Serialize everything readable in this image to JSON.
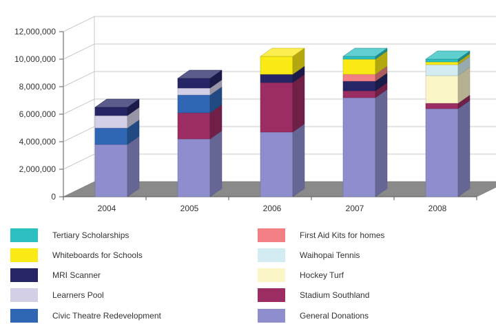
{
  "chart_data": {
    "type": "bar",
    "stacked": true,
    "three_d": true,
    "title": "",
    "xlabel": "",
    "ylabel": "",
    "categories": [
      "2004",
      "2005",
      "2006",
      "2007",
      "2008"
    ],
    "ylim": [
      0,
      13000000
    ],
    "yticks": [
      0,
      2000000,
      4000000,
      6000000,
      8000000,
      10000000,
      12000000
    ],
    "ytick_labels": [
      "0",
      "2,000,000",
      "4,000,000",
      "6,000,000",
      "8,000,000",
      "10,000,000",
      "12,000,000"
    ],
    "grid": true,
    "legend_position": "bottom",
    "series": [
      {
        "name": "General Donations",
        "color": "#8e8ecf",
        "values": [
          3800000,
          4200000,
          4700000,
          7200000,
          6400000
        ]
      },
      {
        "name": "Stadium Southland",
        "color": "#9b2d62",
        "values": [
          0,
          1900000,
          3600000,
          500000,
          400000
        ]
      },
      {
        "name": "Civic Theatre Redevelopment",
        "color": "#2f67b4",
        "values": [
          1200000,
          1300000,
          0,
          0,
          0
        ]
      },
      {
        "name": "Hockey Turf",
        "color": "#fbf6c8",
        "values": [
          0,
          0,
          0,
          0,
          2000000
        ]
      },
      {
        "name": "Learners Pool",
        "color": "#d3cfe6",
        "values": [
          900000,
          500000,
          0,
          0,
          0
        ]
      },
      {
        "name": "Waihopai Tennis",
        "color": "#d2ecf2",
        "values": [
          0,
          0,
          0,
          0,
          800000
        ]
      },
      {
        "name": "MRI Scanner",
        "color": "#262566",
        "values": [
          600000,
          700000,
          600000,
          700000,
          0
        ]
      },
      {
        "name": "First Aid Kits for homes",
        "color": "#f27f84",
        "values": [
          0,
          0,
          0,
          500000,
          0
        ]
      },
      {
        "name": "Whiteboards for Schools",
        "color": "#f9ea16",
        "values": [
          0,
          0,
          1300000,
          1100000,
          200000
        ]
      },
      {
        "name": "Tertiary Scholarships",
        "color": "#2bbfbf",
        "values": [
          0,
          0,
          0,
          200000,
          200000
        ]
      }
    ]
  },
  "legend": {
    "left": [
      {
        "label": "Tertiary Scholarships",
        "color": "#2bbfbf"
      },
      {
        "label": "Whiteboards for Schools",
        "color": "#f9ea16"
      },
      {
        "label": "MRI Scanner",
        "color": "#262566"
      },
      {
        "label": "Learners Pool",
        "color": "#d3cfe6"
      },
      {
        "label": "Civic Theatre Redevelopment",
        "color": "#2f67b4"
      }
    ],
    "right": [
      {
        "label": "First Aid Kits for homes",
        "color": "#f27f84"
      },
      {
        "label": "Waihopai Tennis",
        "color": "#d2ecf2"
      },
      {
        "label": "Hockey Turf",
        "color": "#fbf6c8"
      },
      {
        "label": "Stadium Southland",
        "color": "#9b2d62"
      },
      {
        "label": "General Donations",
        "color": "#8e8ecf"
      }
    ]
  },
  "colors": {
    "floor": "#8a8a8a",
    "grid": "#c8c8c8",
    "axis": "#555555",
    "text": "#333333"
  }
}
